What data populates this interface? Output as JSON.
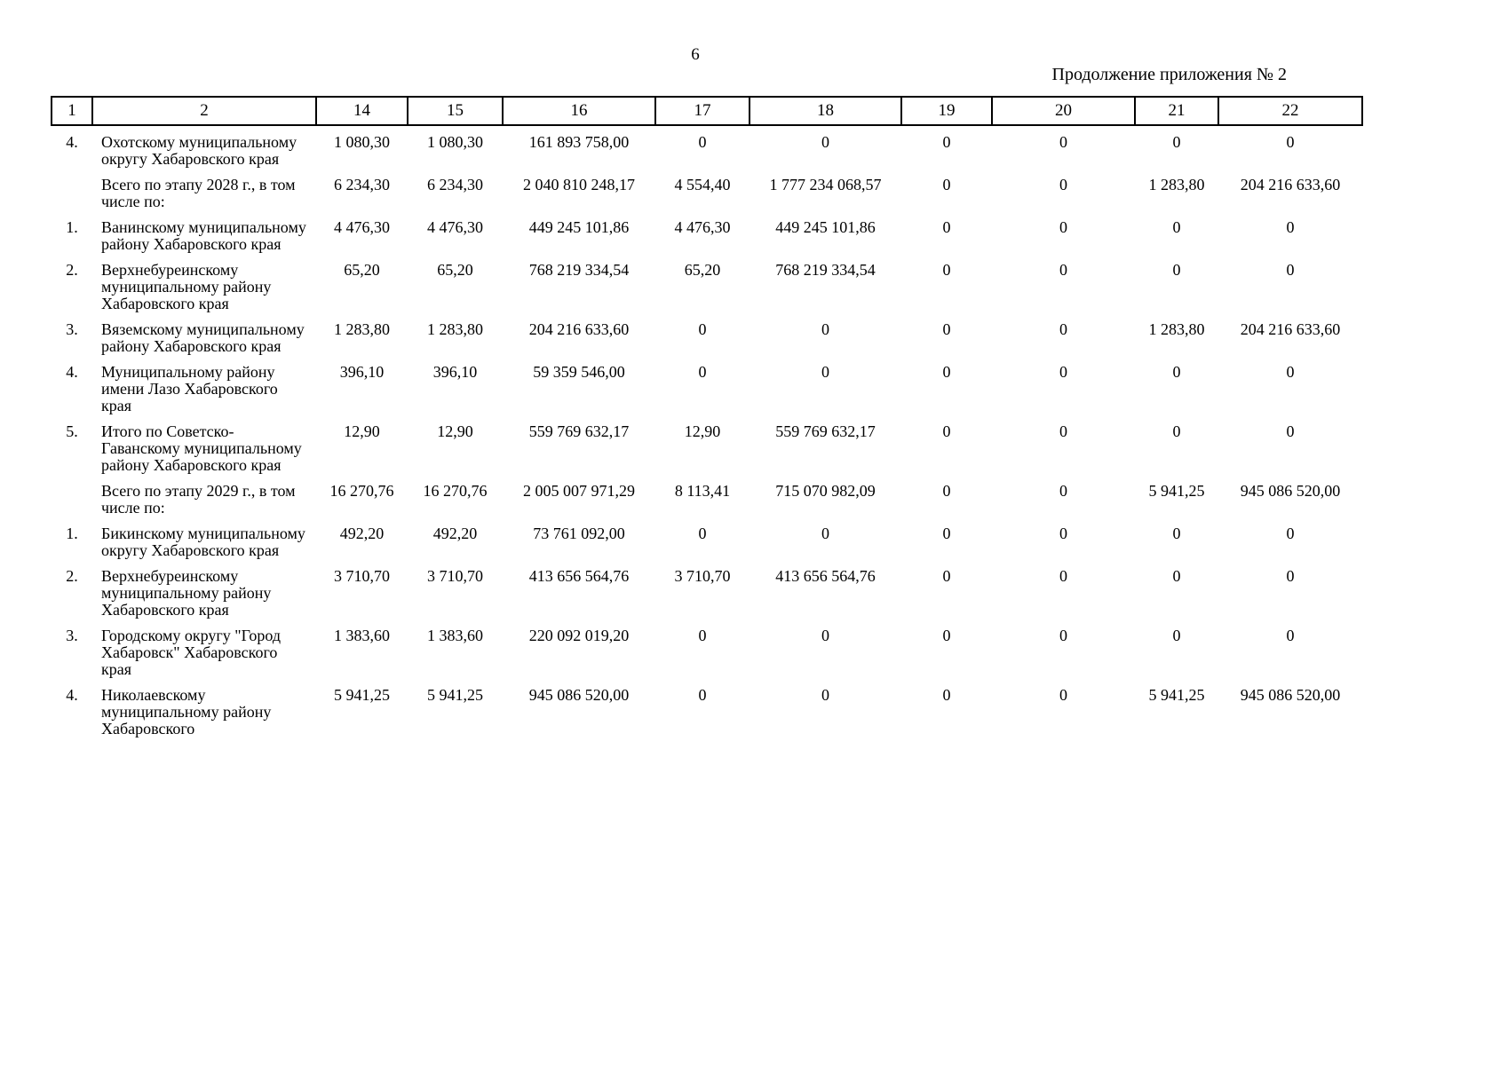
{
  "page": {
    "page_number": "6",
    "continuation_label": "Продолжение приложения № 2"
  },
  "table": {
    "headers": [
      "1",
      "2",
      "14",
      "15",
      "16",
      "17",
      "18",
      "19",
      "20",
      "21",
      "22"
    ],
    "rows": [
      {
        "num": "4.",
        "name": "Охотскому муниципальному округу Хабаровского края",
        "values": [
          "1 080,30",
          "1 080,30",
          "161 893 758,00",
          "0",
          "0",
          "0",
          "0",
          "0",
          "0"
        ]
      },
      {
        "num": "",
        "name": "Всего по этапу 2028 г., в том числе по:",
        "values": [
          "6 234,30",
          "6 234,30",
          "2 040 810 248,17",
          "4 554,40",
          "1 777 234 068,57",
          "0",
          "0",
          "1 283,80",
          "204 216 633,60"
        ]
      },
      {
        "num": "1.",
        "name": "Ванинскому муниципальному району Хабаровского края",
        "values": [
          "4 476,30",
          "4 476,30",
          "449 245 101,86",
          "4 476,30",
          "449 245 101,86",
          "0",
          "0",
          "0",
          "0"
        ]
      },
      {
        "num": "2.",
        "name": "Верхнебуреинскому муниципальному району Хабаровского края",
        "values": [
          "65,20",
          "65,20",
          "768 219 334,54",
          "65,20",
          "768 219 334,54",
          "0",
          "0",
          "0",
          "0"
        ]
      },
      {
        "num": "3.",
        "name": "Вяземскому муниципальному району Хабаровского края",
        "values": [
          "1 283,80",
          "1 283,80",
          "204 216 633,60",
          "0",
          "0",
          "0",
          "0",
          "1 283,80",
          "204 216 633,60"
        ]
      },
      {
        "num": "4.",
        "name": "Муниципальному району имени Лазо Хабаровского края",
        "values": [
          "396,10",
          "396,10",
          "59 359 546,00",
          "0",
          "0",
          "0",
          "0",
          "0",
          "0"
        ]
      },
      {
        "num": "5.",
        "name": "Итого по Советско-Гаванскому муниципальному району Хабаровского края",
        "values": [
          "12,90",
          "12,90",
          "559 769 632,17",
          "12,90",
          "559 769 632,17",
          "0",
          "0",
          "0",
          "0"
        ]
      },
      {
        "num": "",
        "name": "Всего по этапу 2029 г., в том числе по:",
        "values": [
          "16 270,76",
          "16 270,76",
          "2 005 007 971,29",
          "8 113,41",
          "715 070 982,09",
          "0",
          "0",
          "5 941,25",
          "945 086 520,00"
        ]
      },
      {
        "num": "1.",
        "name": "Бикинскому муниципальному округу Хабаровского края",
        "values": [
          "492,20",
          "492,20",
          "73 761 092,00",
          "0",
          "0",
          "0",
          "0",
          "0",
          "0"
        ]
      },
      {
        "num": "2.",
        "name": "Верхнебуреинскому муниципальному району Хабаровского края",
        "values": [
          "3 710,70",
          "3 710,70",
          "413 656 564,76",
          "3 710,70",
          "413 656 564,76",
          "0",
          "0",
          "0",
          "0"
        ]
      },
      {
        "num": "3.",
        "name": "Городскому округу \"Город Хабаровск\" Хабаровского края",
        "values": [
          "1 383,60",
          "1 383,60",
          "220 092 019,20",
          "0",
          "0",
          "0",
          "0",
          "0",
          "0"
        ]
      },
      {
        "num": "4.",
        "name": "Николаевскому муниципальному району Хабаровского",
        "values": [
          "5 941,25",
          "5 941,25",
          "945 086 520,00",
          "0",
          "0",
          "0",
          "0",
          "5 941,25",
          "945 086 520,00"
        ]
      }
    ]
  }
}
